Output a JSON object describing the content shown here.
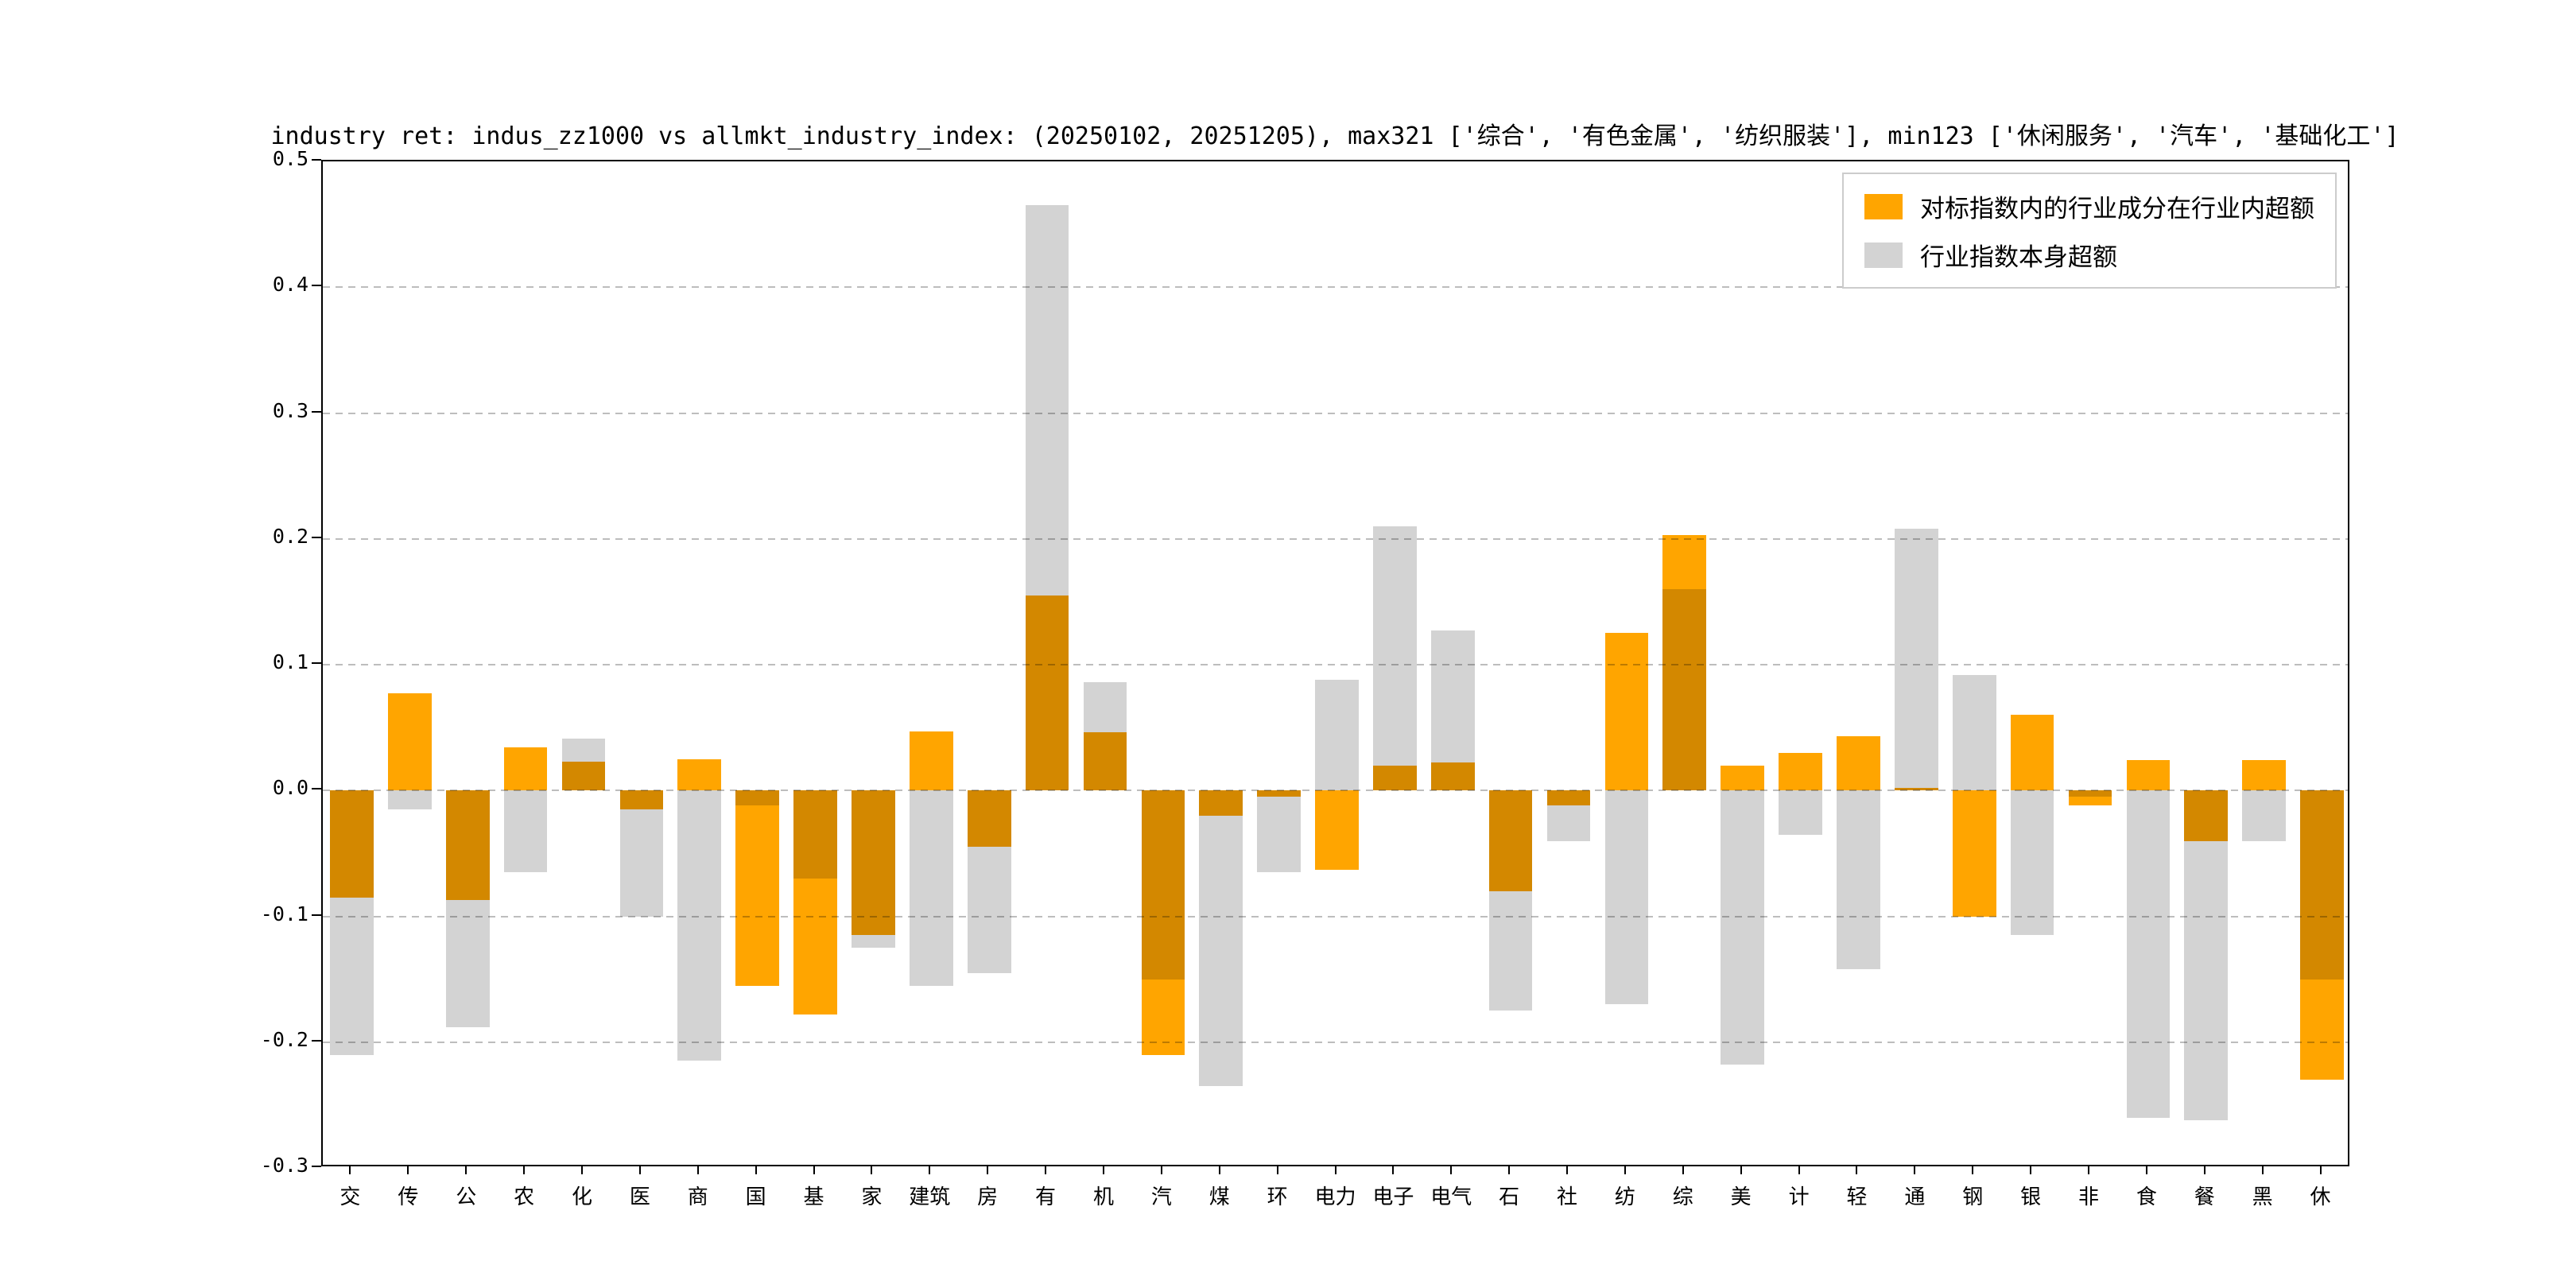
{
  "title": "industry ret: indus_zz1000 vs allmkt_industry_index: (20250102, 20251205), max321 ['综合', '有色金属', '纺织服装'], min123 ['休闲服务', '汽车', '基础化工']",
  "legend": [
    {
      "label": "对标指数内的行业成分在行业内超额",
      "color": "#FFA500"
    },
    {
      "label": "行业指数本身超额",
      "color": "#D3D3D3"
    }
  ],
  "chart_data": {
    "type": "bar",
    "title": "industry ret: indus_zz1000 vs allmkt_industry_index: (20250102, 20251205), max321 ['综合', '有色金属', '纺织服装'], min123 ['休闲服务', '汽车', '基础化工']",
    "categories": [
      "交",
      "传",
      "公",
      "农",
      "化",
      "医",
      "商",
      "国",
      "基",
      "家",
      "建筑",
      "房",
      "有",
      "机",
      "汽",
      "煤",
      "环",
      "电力",
      "电子",
      "电气",
      "石",
      "社",
      "纺",
      "综",
      "美",
      "计",
      "轻",
      "通",
      "钢",
      "银",
      "非",
      "食",
      "餐",
      "黑",
      "休"
    ],
    "series": [
      {
        "name": "对标指数内的行业成分在行业内超额",
        "color": "#FFA500",
        "values": [
          -0.085,
          0.077,
          -0.087,
          0.034,
          0.023,
          -0.015,
          0.025,
          -0.155,
          -0.178,
          -0.115,
          0.047,
          -0.045,
          0.155,
          0.046,
          -0.21,
          -0.02,
          -0.005,
          -0.063,
          0.02,
          0.022,
          -0.08,
          -0.012,
          0.125,
          0.203,
          0.02,
          0.03,
          0.043,
          0.002,
          -0.1,
          0.06,
          -0.012,
          0.024,
          -0.04,
          0.024,
          -0.23
        ]
      },
      {
        "name": "行业指数本身超额",
        "color": "#D3D3D3",
        "values": [
          -0.21,
          -0.015,
          -0.188,
          -0.065,
          0.041,
          -0.1,
          -0.215,
          -0.012,
          -0.07,
          -0.125,
          -0.155,
          -0.145,
          0.465,
          0.086,
          -0.15,
          -0.235,
          -0.065,
          0.088,
          0.21,
          0.127,
          -0.175,
          -0.04,
          -0.17,
          0.16,
          -0.218,
          -0.035,
          -0.142,
          0.208,
          0.092,
          -0.115,
          -0.005,
          -0.26,
          -0.262,
          -0.04,
          -0.15
        ]
      }
    ],
    "ylim": [
      -0.3,
      0.5
    ],
    "yticks": [
      0.5,
      0.4,
      0.3,
      0.2,
      0.1,
      0.0,
      -0.1,
      -0.2,
      -0.3
    ],
    "xlabel": "",
    "ylabel": "",
    "grid": "dashed-horizontal",
    "legend_position": "upper-right",
    "bar_width_fraction": 0.75
  }
}
